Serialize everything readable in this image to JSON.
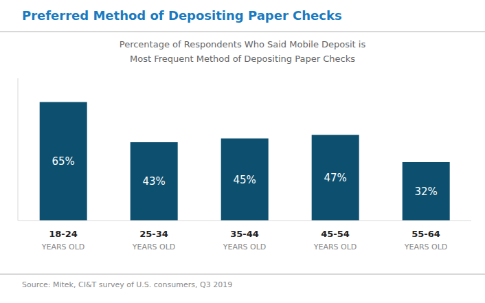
{
  "chart_data": {
    "type": "bar",
    "title": "Preferred Method of Depositing Paper Checks",
    "subtitle": [
      "Percentage of Respondents Who Said Mobile Deposit is",
      "Most Frequent Method of Depositing Paper Checks"
    ],
    "categories": [
      "18-24\nYEARS OLD",
      "25-34\nYEARS OLD",
      "35-44\nYEARS OLD",
      "45-54\nYEARS OLD",
      "55-64\nYEARS OLD"
    ],
    "values": [
      65,
      43,
      45,
      47,
      32
    ],
    "value_labels": [
      "65%",
      "43%",
      "45%",
      "47%",
      "32%"
    ],
    "data_labels": true,
    "color": "#0d4f6e",
    "ylim": [
      0,
      78
    ],
    "tick_labels": "x",
    "grid": false,
    "annotations": [
      "Source: Mitek, CI&T survey of U.S. consumers, Q3 2019"
    ]
  }
}
